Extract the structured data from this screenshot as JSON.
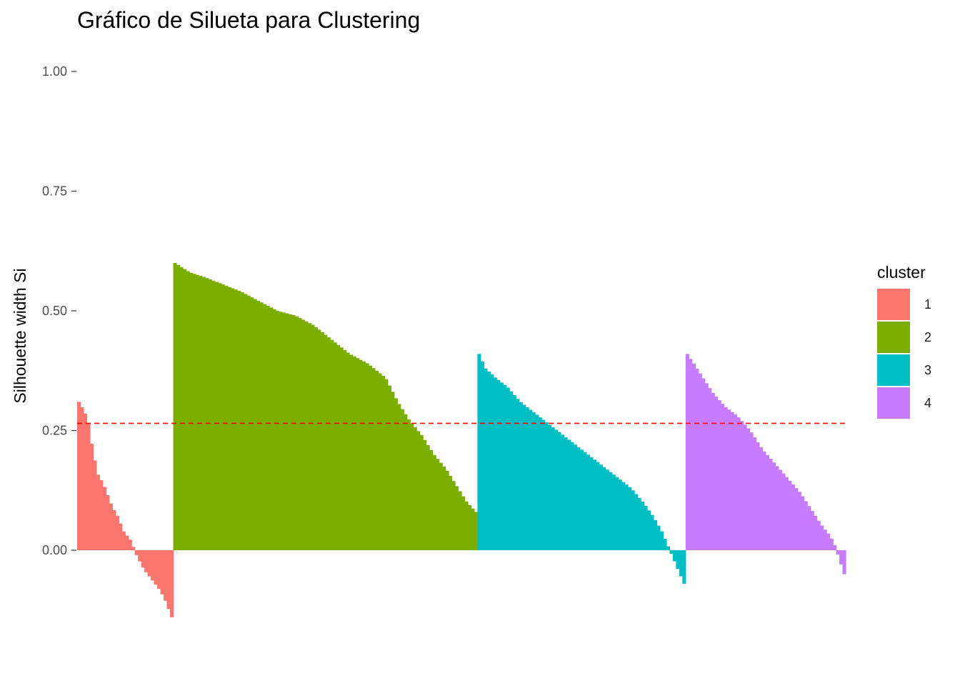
{
  "chart_data": {
    "type": "bar",
    "title": "Gráfico de Silueta para Clustering",
    "xlabel": "",
    "ylabel": "Silhouette width Si",
    "ylim": [
      -0.2,
      1.05
    ],
    "yticks": [
      "0.00",
      "0.25",
      "0.50",
      "0.75",
      "1.00"
    ],
    "legend": {
      "title": "cluster",
      "position": "right"
    },
    "average_line": {
      "value": 0.265,
      "color": "#ff0000",
      "style": "dashed"
    },
    "series": [
      {
        "name": "1",
        "color": "#F8766D",
        "count": 30,
        "max": 0.31,
        "min": -0.14,
        "profile": [
          [
            0,
            0.31
          ],
          [
            0.06,
            0.29
          ],
          [
            0.1,
            0.27
          ],
          [
            0.14,
            0.22
          ],
          [
            0.2,
            0.16
          ],
          [
            0.26,
            0.14
          ],
          [
            0.3,
            0.12
          ],
          [
            0.36,
            0.09
          ],
          [
            0.42,
            0.07
          ],
          [
            0.48,
            0.04
          ],
          [
            0.56,
            0.02
          ],
          [
            0.62,
            -0.01
          ],
          [
            0.7,
            -0.04
          ],
          [
            0.78,
            -0.06
          ],
          [
            0.86,
            -0.08
          ],
          [
            0.92,
            -0.1
          ],
          [
            1,
            -0.14
          ]
        ]
      },
      {
        "name": "2",
        "color": "#7CAE00",
        "count": 95,
        "max": 0.6,
        "min": 0.08,
        "profile": [
          [
            0,
            0.6
          ],
          [
            0.05,
            0.58
          ],
          [
            0.1,
            0.57
          ],
          [
            0.16,
            0.555
          ],
          [
            0.22,
            0.54
          ],
          [
            0.28,
            0.52
          ],
          [
            0.34,
            0.5
          ],
          [
            0.4,
            0.49
          ],
          [
            0.46,
            0.47
          ],
          [
            0.52,
            0.44
          ],
          [
            0.58,
            0.41
          ],
          [
            0.64,
            0.39
          ],
          [
            0.7,
            0.36
          ],
          [
            0.74,
            0.31
          ],
          [
            0.78,
            0.27
          ],
          [
            0.82,
            0.24
          ],
          [
            0.86,
            0.2
          ],
          [
            0.9,
            0.17
          ],
          [
            0.94,
            0.13
          ],
          [
            0.97,
            0.1
          ],
          [
            1,
            0.08
          ]
        ]
      },
      {
        "name": "3",
        "color": "#00BFC4",
        "count": 65,
        "max": 0.41,
        "min": -0.07,
        "profile": [
          [
            0,
            0.41
          ],
          [
            0.03,
            0.38
          ],
          [
            0.08,
            0.36
          ],
          [
            0.14,
            0.34
          ],
          [
            0.2,
            0.31
          ],
          [
            0.26,
            0.29
          ],
          [
            0.32,
            0.27
          ],
          [
            0.38,
            0.25
          ],
          [
            0.44,
            0.23
          ],
          [
            0.5,
            0.21
          ],
          [
            0.56,
            0.19
          ],
          [
            0.62,
            0.17
          ],
          [
            0.68,
            0.15
          ],
          [
            0.74,
            0.13
          ],
          [
            0.8,
            0.1
          ],
          [
            0.85,
            0.07
          ],
          [
            0.89,
            0.04
          ],
          [
            0.92,
            0.01
          ],
          [
            0.94,
            -0.01
          ],
          [
            0.97,
            -0.04
          ],
          [
            1,
            -0.07
          ]
        ]
      },
      {
        "name": "4",
        "color": "#C77CFF",
        "count": 50,
        "max": 0.41,
        "min": -0.05,
        "profile": [
          [
            0,
            0.41
          ],
          [
            0.04,
            0.39
          ],
          [
            0.1,
            0.36
          ],
          [
            0.16,
            0.33
          ],
          [
            0.24,
            0.3
          ],
          [
            0.32,
            0.28
          ],
          [
            0.4,
            0.25
          ],
          [
            0.48,
            0.21
          ],
          [
            0.56,
            0.18
          ],
          [
            0.64,
            0.15
          ],
          [
            0.72,
            0.12
          ],
          [
            0.8,
            0.08
          ],
          [
            0.86,
            0.05
          ],
          [
            0.91,
            0.03
          ],
          [
            0.94,
            0.01
          ],
          [
            0.96,
            -0.01
          ],
          [
            1,
            -0.05
          ]
        ]
      }
    ]
  }
}
